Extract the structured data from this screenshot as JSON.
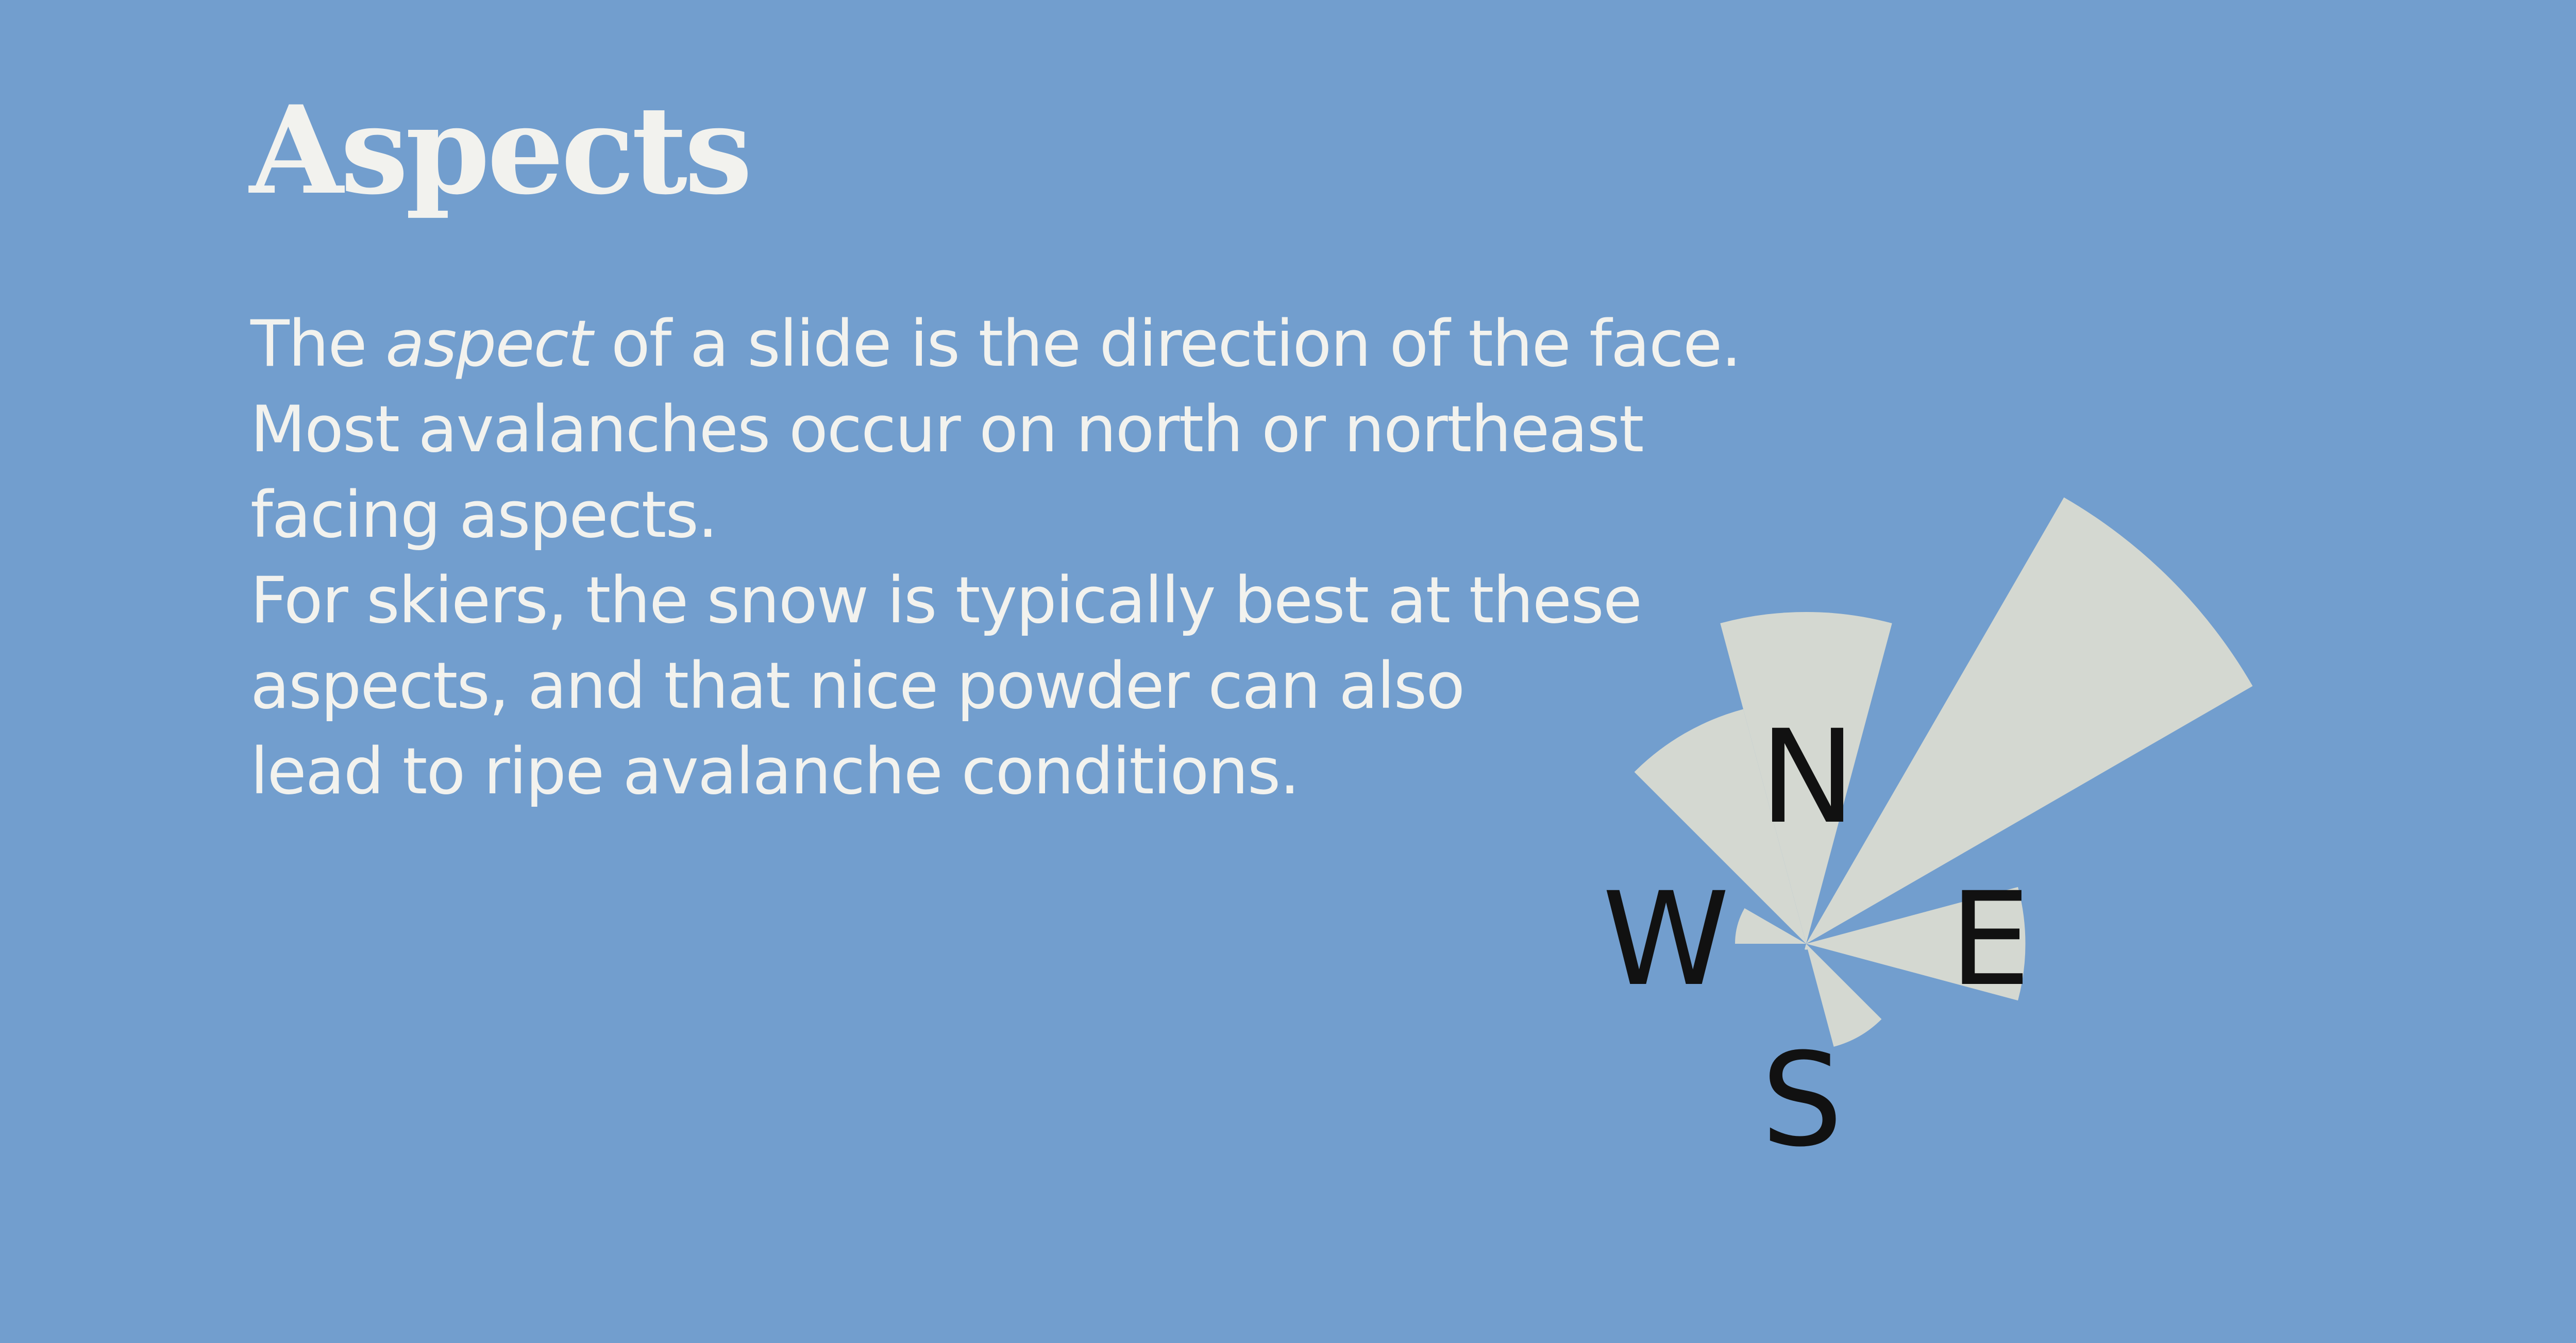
{
  "title": "Aspects",
  "paragraph": {
    "line1_pre": "The ",
    "line1_em": "aspect",
    "line1_post": " of a slide is the direction of the face.",
    "line2": "Most avalanches occur on north or northeast",
    "line3": "facing aspects.",
    "line4": "For skiers, the snow is typically best at these",
    "line5": "aspects, and that nice powder can also",
    "line6": "lead to ripe avalanche conditions."
  },
  "colors": {
    "background": "#729ece",
    "wedge": "#d4d8d1",
    "text": "#f2f2ee",
    "compass_text": "#111111"
  },
  "chart_data": {
    "type": "polar-bar",
    "title": "",
    "compass": [
      "N",
      "E",
      "S",
      "W"
    ],
    "bin_width_degrees": 30,
    "bins": [
      {
        "direction_deg": 0,
        "value": 0.56
      },
      {
        "direction_deg": 45,
        "value": 0.87
      },
      {
        "direction_deg": 90,
        "value": 0.37
      },
      {
        "direction_deg": 150,
        "value": 0.18
      },
      {
        "direction_deg": 180,
        "value": 0.01
      },
      {
        "direction_deg": 285,
        "value": 0.12
      },
      {
        "direction_deg": 330,
        "value": 0.41
      }
    ],
    "rmax": 1.0,
    "grid": false,
    "legend": "none"
  }
}
